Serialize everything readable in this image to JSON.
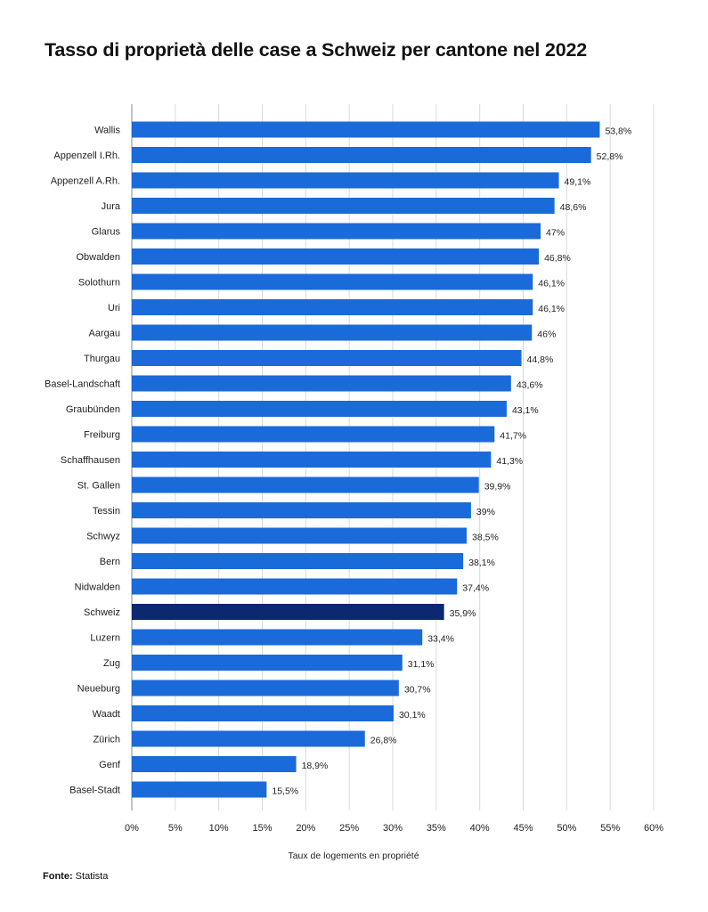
{
  "title": "Tasso di proprietà delle case a Schweiz per cantone nel 2022",
  "source": {
    "label": "Fonte:",
    "value": "Statista"
  },
  "chart_data": {
    "type": "bar",
    "orientation": "horizontal",
    "title": "Tasso di proprietà delle case a Schweiz per cantone nel 2022",
    "xlabel": "Taux de logements en propriété",
    "ylabel": "",
    "xlim": [
      0,
      60
    ],
    "x_ticks": [
      "0%",
      "5%",
      "10%",
      "15%",
      "20%",
      "25%",
      "30%",
      "35%",
      "40%",
      "45%",
      "50%",
      "55%",
      "60%"
    ],
    "grid": true,
    "colors": {
      "bar": "#1a6ad9",
      "highlight": "#0b2870",
      "grid": "#d9d9d9"
    },
    "highlight": "Schweiz",
    "categories": [
      "Wallis",
      "Appenzell I.Rh.",
      "Appenzell A.Rh.",
      "Jura",
      "Glarus",
      "Obwalden",
      "Solothurn",
      "Uri",
      "Aargau",
      "Thurgau",
      "Basel-Landschaft",
      "Graubünden",
      "Freiburg",
      "Schaffhausen",
      "St. Gallen",
      "Tessin",
      "Schwyz",
      "Bern",
      "Nidwalden",
      "Schweiz",
      "Luzern",
      "Zug",
      "Neueburg",
      "Waadt",
      "Zürich",
      "Genf",
      "Basel-Stadt"
    ],
    "values": [
      53.8,
      52.8,
      49.1,
      48.6,
      47,
      46.8,
      46.1,
      46.1,
      46,
      44.8,
      43.6,
      43.1,
      41.7,
      41.3,
      39.9,
      39,
      38.5,
      38.1,
      37.4,
      35.9,
      33.4,
      31.1,
      30.7,
      30.1,
      26.8,
      18.9,
      15.5
    ],
    "labels": [
      "53,8%",
      "52,8%",
      "49,1%",
      "48,6%",
      "47%",
      "46,8%",
      "46,1%",
      "46,1%",
      "46%",
      "44,8%",
      "43,6%",
      "43,1%",
      "41,7%",
      "41,3%",
      "39,9%",
      "39%",
      "38,5%",
      "38,1%",
      "37,4%",
      "35,9%",
      "33,4%",
      "31,1%",
      "30,7%",
      "30,1%",
      "26,8%",
      "18,9%",
      "15,5%"
    ]
  }
}
